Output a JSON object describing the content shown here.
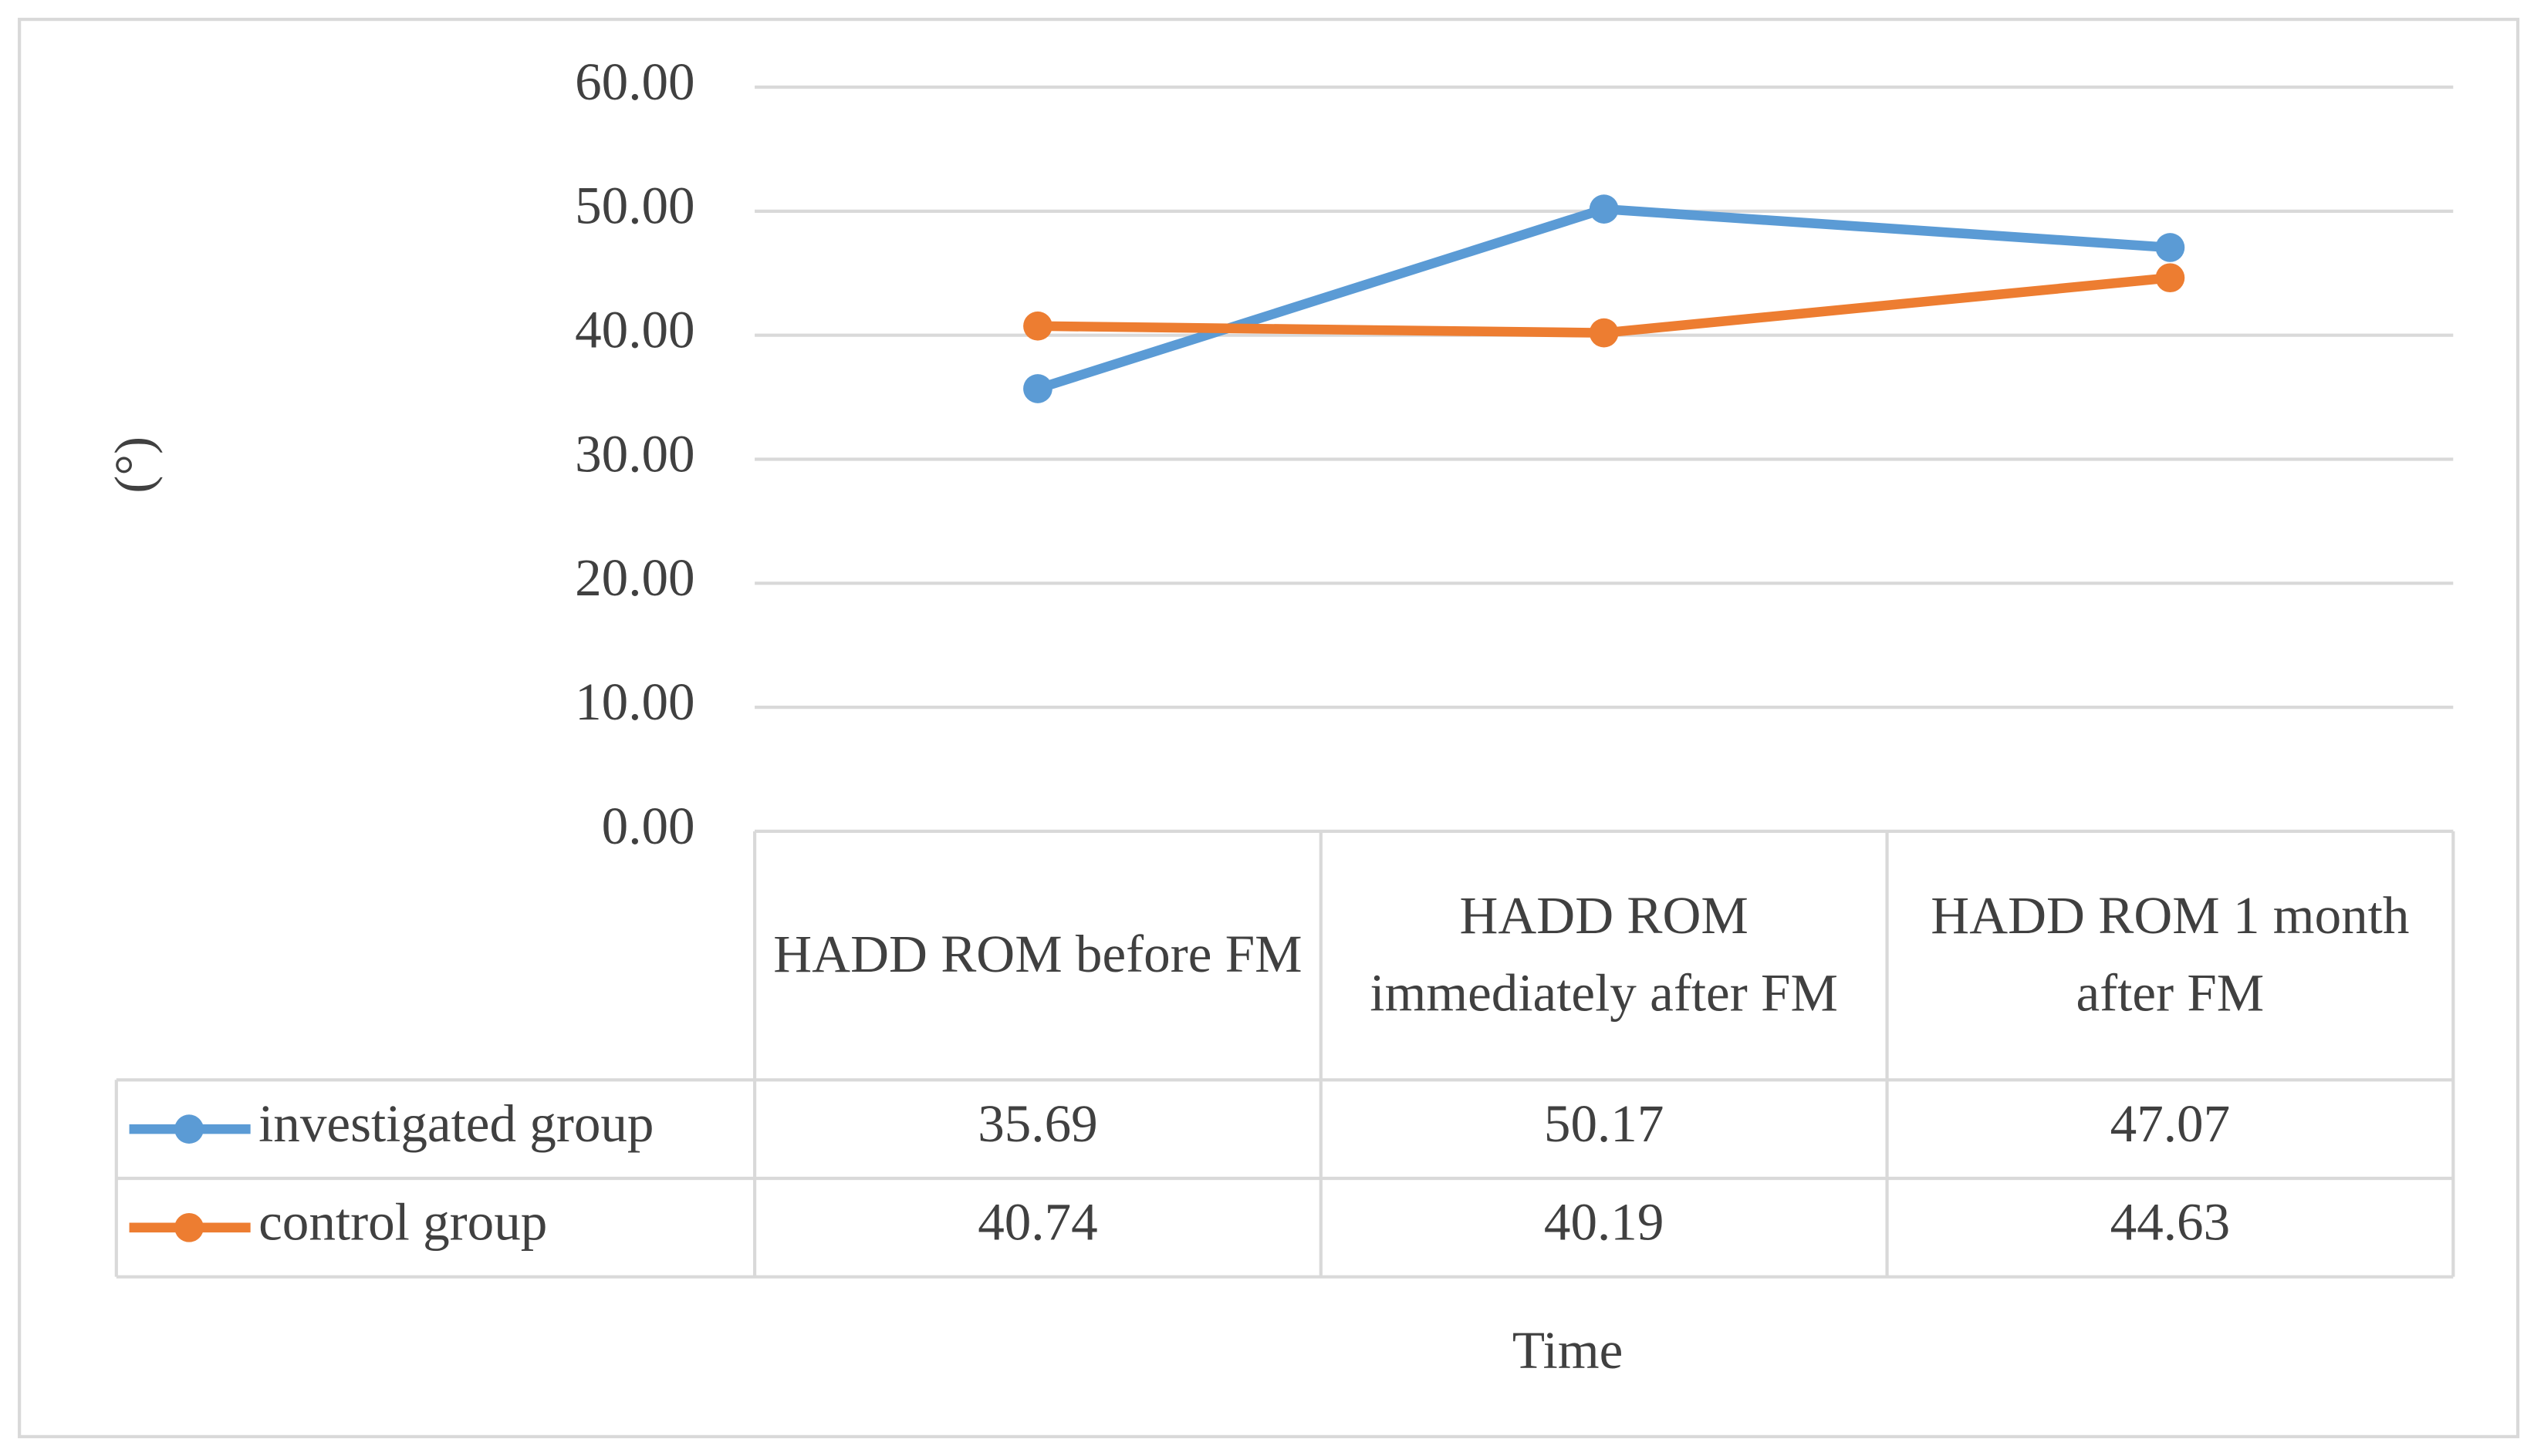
{
  "chart_data": {
    "type": "line",
    "categories": [
      "HADD ROM before FM",
      "HADD ROM immediately after FM",
      "HADD ROM 1 month after FM"
    ],
    "series": [
      {
        "name": "investigated group",
        "color": "#5b9bd5",
        "values": [
          35.69,
          50.17,
          47.07
        ]
      },
      {
        "name": "control group",
        "color": "#ed7d31",
        "values": [
          40.74,
          40.19,
          44.63
        ]
      }
    ],
    "ylabel": "(°)",
    "xlabel": "Time",
    "ylim": [
      0,
      60
    ],
    "yticks": [
      {
        "value": 0,
        "label": "0.00"
      },
      {
        "value": 10,
        "label": "10.00"
      },
      {
        "value": 20,
        "label": "20.00"
      },
      {
        "value": 30,
        "label": "30.00"
      },
      {
        "value": 40,
        "label": "40.00"
      },
      {
        "value": 50,
        "label": "50.00"
      },
      {
        "value": 60,
        "label": "60.00"
      }
    ],
    "grid": true
  }
}
